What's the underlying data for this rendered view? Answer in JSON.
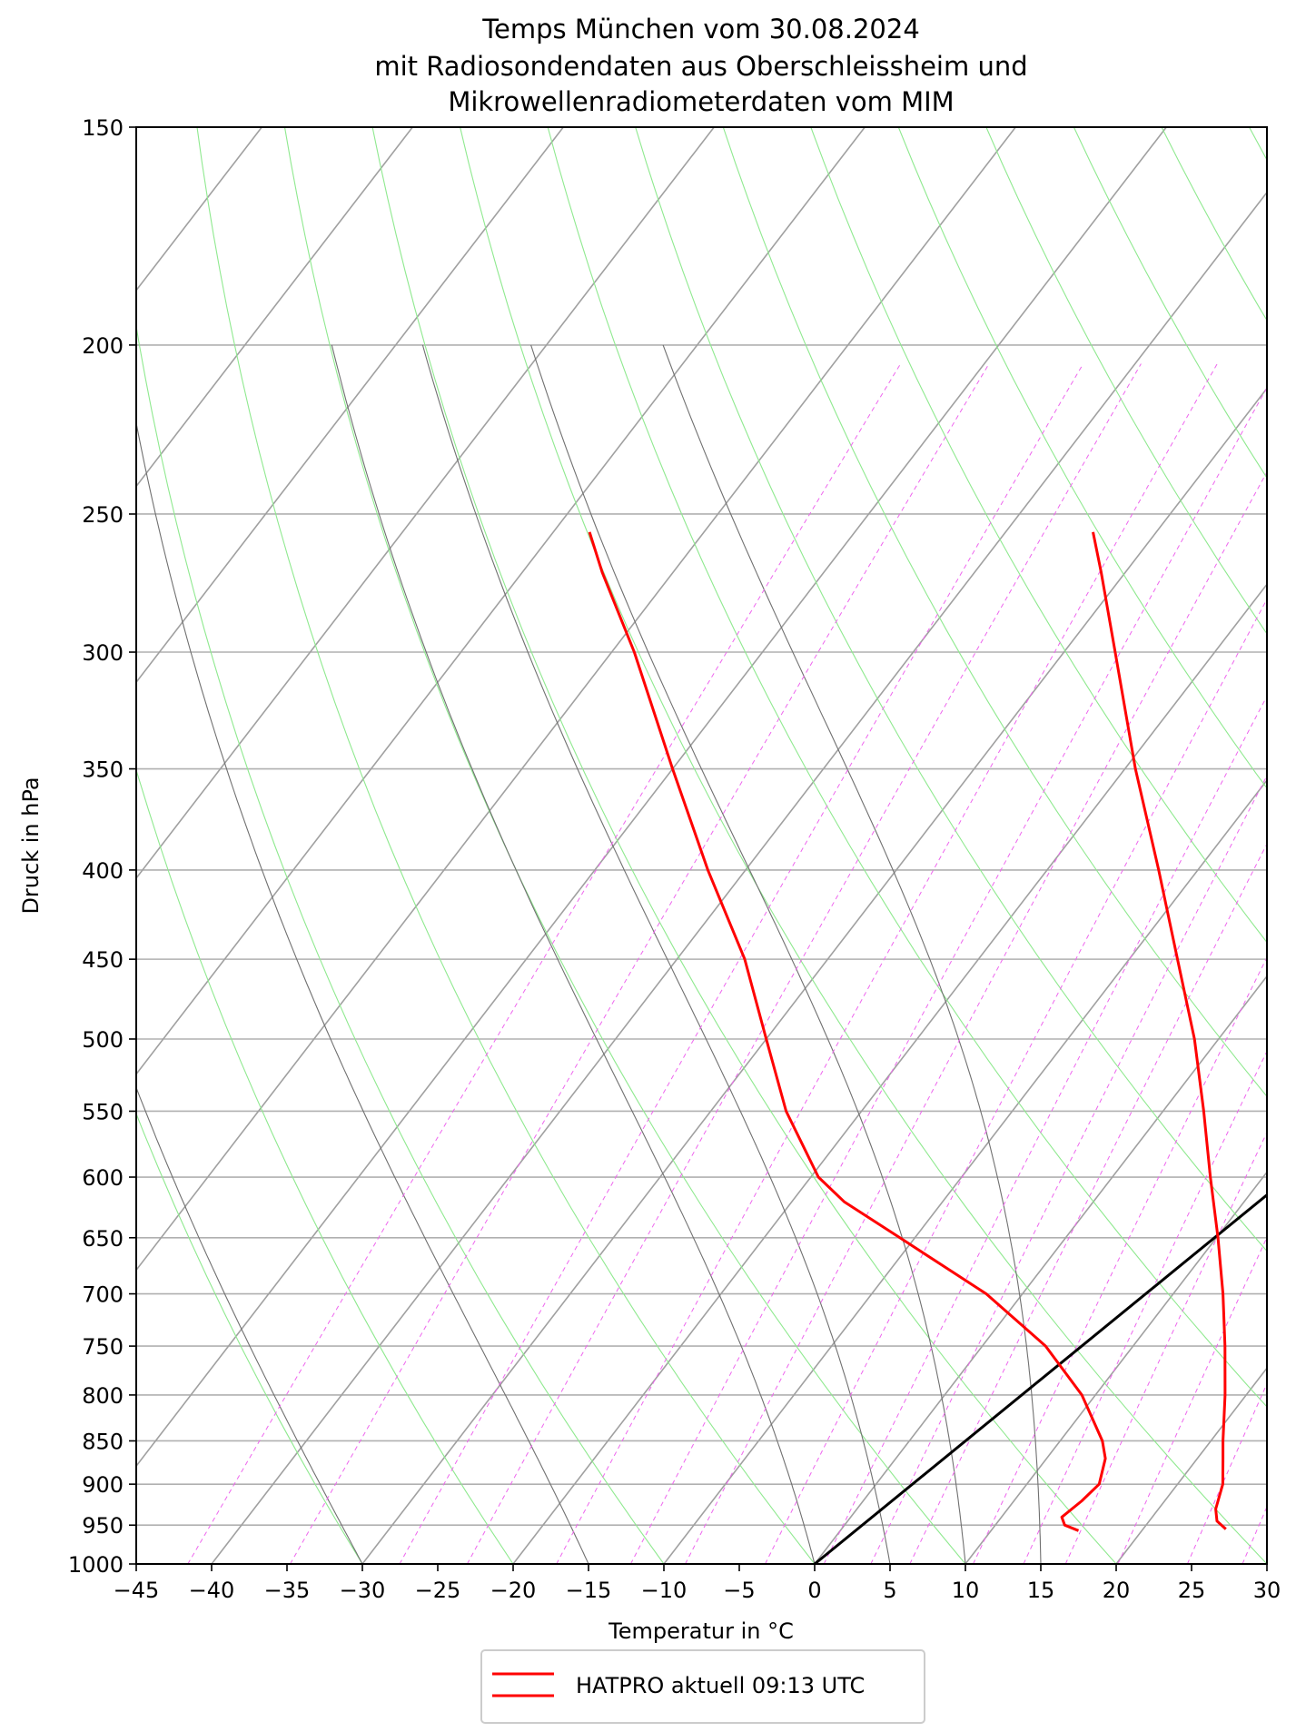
{
  "chart_data": {
    "type": "line",
    "subtype": "skew-T log-p diagram",
    "title_lines": [
      "Temps München vom 30.08.2024",
      "mit Radiosondendaten aus Oberschleissheim und",
      "Mikrowellenradiometerdaten vom MIM"
    ],
    "xlabel": "Temperatur in $^\\circ$C",
    "xlabel_display": "Temperatur in °C",
    "ylabel": "Druck in hPa",
    "xlim": [
      -45,
      30
    ],
    "ylim": [
      1000,
      150
    ],
    "y_scale": "log",
    "skew_degrees_per_log_decade": 89,
    "x_ticks": [
      -45,
      -40,
      -35,
      -30,
      -25,
      -20,
      -15,
      -10,
      -5,
      0,
      5,
      10,
      15,
      20,
      25,
      30
    ],
    "x_tick_labels": [
      "−45",
      "−40",
      "−35",
      "−30",
      "−25",
      "−20",
      "−15",
      "−10",
      "−5",
      "0",
      "5",
      "10",
      "15",
      "20",
      "25",
      "30"
    ],
    "y_ticks": [
      1000,
      950,
      900,
      850,
      800,
      750,
      700,
      650,
      600,
      550,
      500,
      450,
      400,
      350,
      300,
      250,
      200,
      150
    ],
    "grid": true,
    "isotherms_every": 10,
    "dry_adiabats_theta_c": [
      -30,
      -20,
      -10,
      0,
      10,
      20,
      30,
      40,
      50,
      60,
      70,
      80,
      90,
      100,
      110,
      120,
      130,
      140
    ],
    "dry_adiabat_color": "#8fe98f",
    "moist_adiabats_start_c": [
      -30,
      -15,
      0,
      5,
      10,
      15
    ],
    "moist_adiabat_top_hpa": 200,
    "mixing_ratio_lines_gkg": [
      0.1,
      0.2,
      0.4,
      0.6,
      1,
      1.5,
      2,
      3,
      4,
      5,
      6,
      8,
      10,
      12,
      15,
      20,
      25,
      30,
      40
    ],
    "mixing_ratio_top_hpa": 205,
    "mixing_ratio_color": "#ee66ee",
    "reference_line": {
      "color": "#000000",
      "points": [
        {
          "p": 1000,
          "t": 0
        },
        {
          "p": 270,
          "t": 30
        }
      ]
    },
    "series": [
      {
        "name": "HATPRO aktuell 09:13 UTC",
        "kind": "temperature",
        "color": "#ff0000",
        "points": [
          {
            "p": 955,
            "t": 25.5
          },
          {
            "p": 945,
            "t": 24.5
          },
          {
            "p": 930,
            "t": 23.8
          },
          {
            "p": 900,
            "t": 23.0
          },
          {
            "p": 870,
            "t": 21.7
          },
          {
            "p": 850,
            "t": 20.8
          },
          {
            "p": 800,
            "t": 18.6
          },
          {
            "p": 750,
            "t": 16.1
          },
          {
            "p": 700,
            "t": 13.3
          },
          {
            "p": 650,
            "t": 10.1
          },
          {
            "p": 600,
            "t": 6.5
          },
          {
            "p": 550,
            "t": 2.7
          },
          {
            "p": 500,
            "t": -1.6
          },
          {
            "p": 450,
            "t": -6.8
          },
          {
            "p": 400,
            "t": -12.6
          },
          {
            "p": 350,
            "t": -19.3
          },
          {
            "p": 300,
            "t": -26.6
          },
          {
            "p": 270,
            "t": -31.6
          },
          {
            "p": 256,
            "t": -34.2
          }
        ]
      },
      {
        "name": "HATPRO aktuell 09:13 UTC",
        "kind": "dewpoint",
        "color": "#ff0000",
        "points": [
          {
            "p": 957,
            "t": 15.8
          },
          {
            "p": 950,
            "t": 14.6
          },
          {
            "p": 940,
            "t": 14.0
          },
          {
            "p": 920,
            "t": 14.5
          },
          {
            "p": 900,
            "t": 14.8
          },
          {
            "p": 870,
            "t": 13.9
          },
          {
            "p": 850,
            "t": 12.8
          },
          {
            "p": 800,
            "t": 9.1
          },
          {
            "p": 750,
            "t": 4.2
          },
          {
            "p": 700,
            "t": -2.4
          },
          {
            "p": 650,
            "t": -11.0
          },
          {
            "p": 620,
            "t": -16.5
          },
          {
            "p": 600,
            "t": -19.5
          },
          {
            "p": 550,
            "t": -25.0
          },
          {
            "p": 500,
            "t": -30.0
          },
          {
            "p": 450,
            "t": -35.5
          },
          {
            "p": 400,
            "t": -42.5
          },
          {
            "p": 350,
            "t": -50.0
          },
          {
            "p": 300,
            "t": -58.5
          },
          {
            "p": 270,
            "t": -64.7
          },
          {
            "p": 256,
            "t": -67.6
          }
        ]
      }
    ],
    "legend": {
      "position": "below-center",
      "entries": [
        {
          "label": "HATPRO aktuell 09:13 UTC",
          "color": "#ff0000"
        }
      ]
    }
  }
}
